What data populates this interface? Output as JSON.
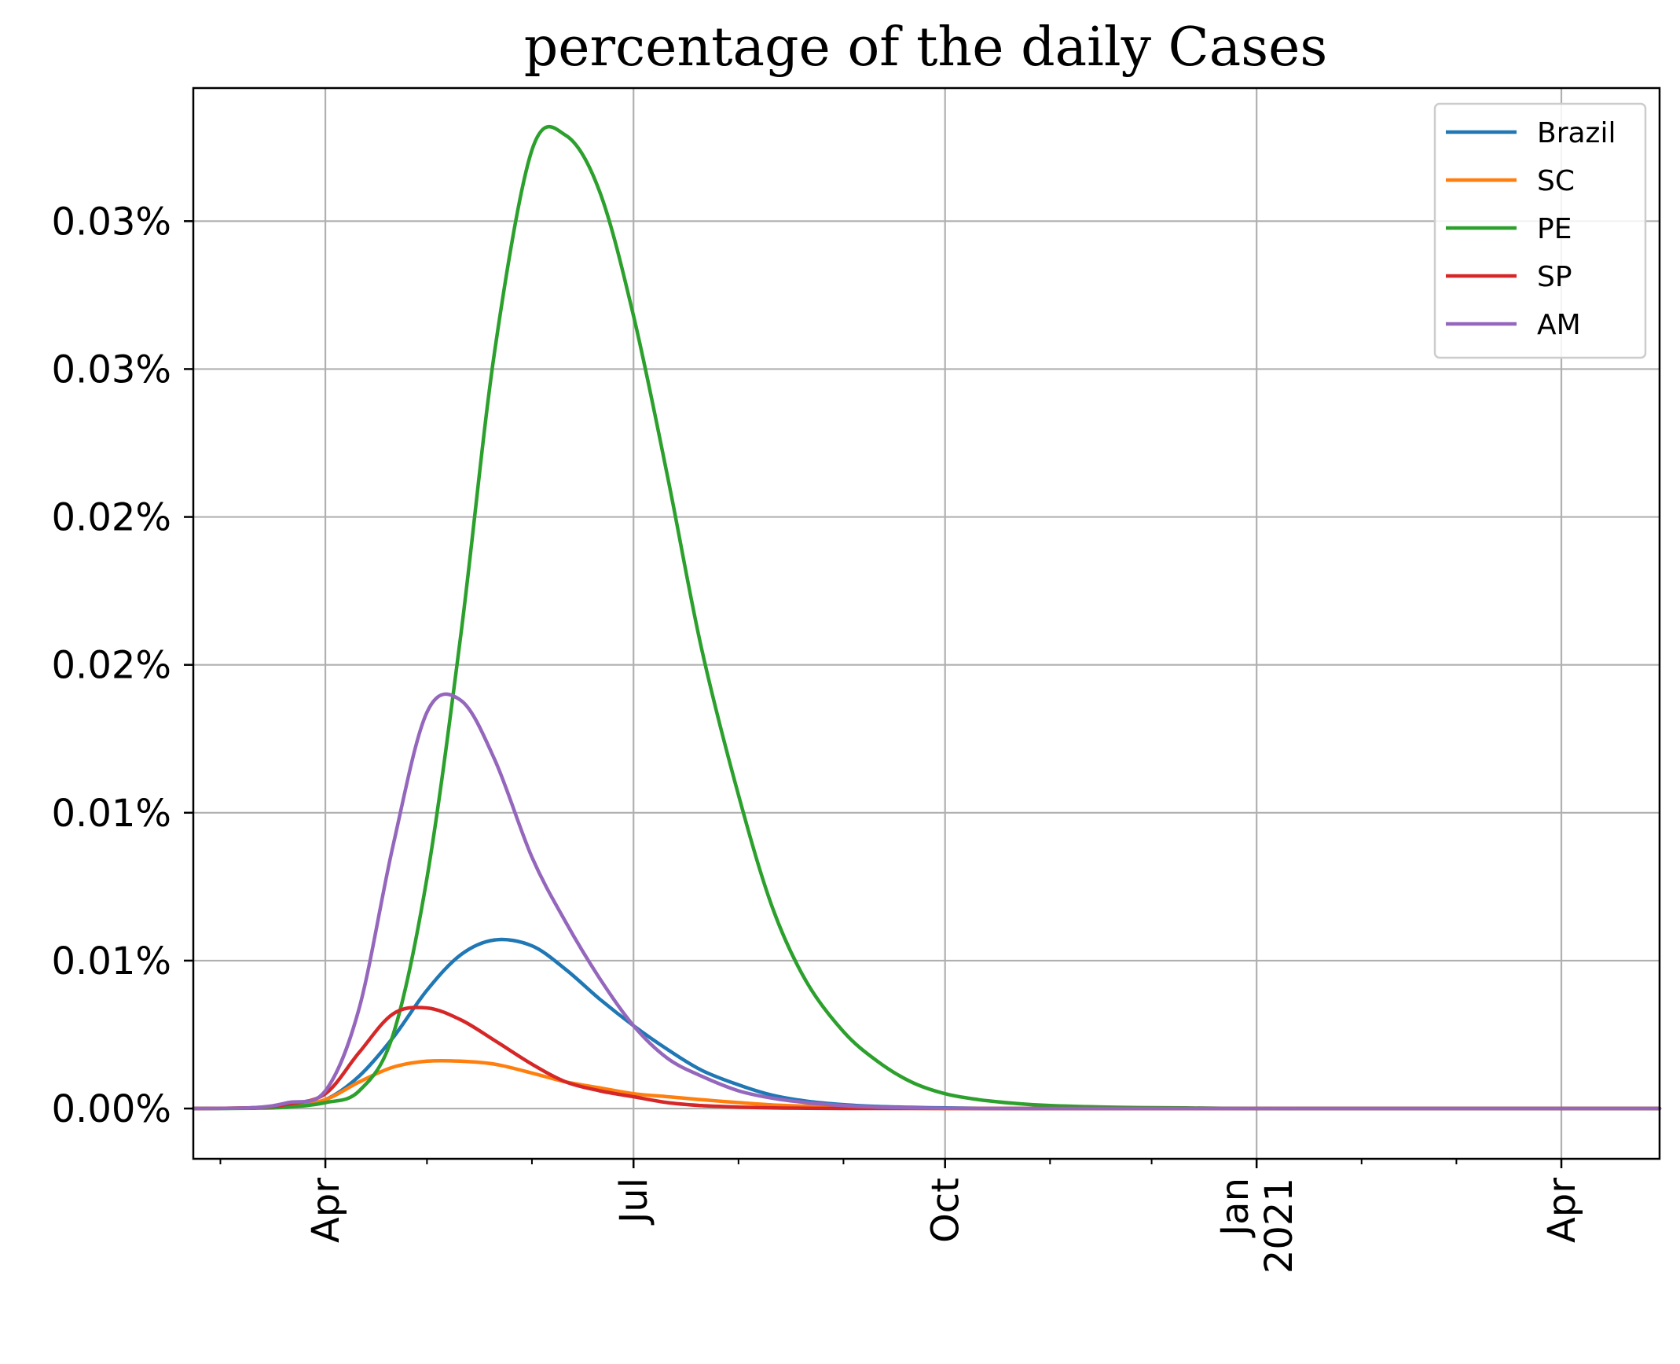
{
  "chart_data": {
    "type": "line",
    "title": "percentage of the daily Cases",
    "xlabel": "",
    "ylabel": "",
    "x_axis": {
      "type": "date",
      "range": [
        "2020-02-22",
        "2021-04-30"
      ],
      "major_ticks": [
        {
          "date": "2020-04-01",
          "label": "Apr"
        },
        {
          "date": "2020-07-01",
          "label": "Jul"
        },
        {
          "date": "2020-10-01",
          "label": "Oct"
        },
        {
          "date": "2021-01-01",
          "label": "Jan\n2021"
        },
        {
          "date": "2021-04-01",
          "label": "Apr"
        }
      ],
      "minor_ticks": "monthly"
    },
    "y_axis": {
      "unit": "percent",
      "range": [
        -0.0017,
        0.0345
      ],
      "ticks": [
        {
          "value": 0.0,
          "label": "0.00%"
        },
        {
          "value": 0.005,
          "label": "0.01%"
        },
        {
          "value": 0.01,
          "label": "0.01%"
        },
        {
          "value": 0.015,
          "label": "0.02%"
        },
        {
          "value": 0.02,
          "label": "0.02%"
        },
        {
          "value": 0.025,
          "label": "0.03%"
        },
        {
          "value": 0.03,
          "label": "0.03%"
        }
      ]
    },
    "grid": true,
    "legend_position": "top-right",
    "x": [
      "2020-02-22",
      "2020-03-11",
      "2020-03-21",
      "2020-04-01",
      "2020-04-11",
      "2020-04-21",
      "2020-05-01",
      "2020-05-11",
      "2020-05-21",
      "2020-06-01",
      "2020-06-11",
      "2020-06-21",
      "2020-07-01",
      "2020-07-11",
      "2020-07-21",
      "2020-08-01",
      "2020-08-11",
      "2020-08-21",
      "2020-09-01",
      "2020-09-11",
      "2020-09-21",
      "2020-10-01",
      "2020-10-11",
      "2020-10-21",
      "2020-11-01",
      "2020-11-21",
      "2020-12-11",
      "2021-01-01",
      "2021-01-21",
      "2021-02-11",
      "2021-03-01",
      "2021-03-21",
      "2021-04-11",
      "2021-04-30"
    ],
    "series": [
      {
        "name": "Brazil",
        "color": "#1f77b4",
        "values": [
          0,
          2e-05,
          8e-05,
          0.0003,
          0.0011,
          0.0024,
          0.004,
          0.0052,
          0.0057,
          0.0055,
          0.0047,
          0.0037,
          0.0028,
          0.002,
          0.0013,
          0.0008,
          0.00045,
          0.00025,
          0.00013,
          7e-05,
          4e-05,
          2e-05,
          1e-05,
          0,
          0,
          0,
          0,
          0,
          0,
          0,
          0,
          0,
          0,
          0
        ]
      },
      {
        "name": "SC",
        "color": "#ff7f0e",
        "values": [
          0,
          2e-05,
          8e-05,
          0.0003,
          0.0009,
          0.0014,
          0.0016,
          0.0016,
          0.0015,
          0.0012,
          0.0009,
          0.0007,
          0.0005,
          0.0004,
          0.0003,
          0.0002,
          0.00012,
          8e-05,
          4e-05,
          2e-05,
          1e-05,
          0,
          0,
          0,
          0,
          0,
          0,
          0,
          0,
          0,
          0,
          0,
          0,
          0
        ]
      },
      {
        "name": "PE",
        "color": "#2ca02c",
        "values": [
          0,
          1e-05,
          5e-05,
          0.0002,
          0.0006,
          0.0025,
          0.0078,
          0.016,
          0.0256,
          0.0324,
          0.0329,
          0.031,
          0.0268,
          0.0214,
          0.0156,
          0.0106,
          0.0068,
          0.0043,
          0.0026,
          0.0016,
          0.0009,
          0.0005,
          0.0003,
          0.00018,
          0.0001,
          4e-05,
          2e-05,
          0,
          0,
          0,
          0,
          0,
          0,
          0
        ]
      },
      {
        "name": "SP",
        "color": "#d62728",
        "values": [
          0,
          3e-05,
          0.00015,
          0.0005,
          0.0019,
          0.0032,
          0.0034,
          0.003,
          0.0023,
          0.0015,
          0.0009,
          0.0006,
          0.0004,
          0.0002,
          0.0001,
          5e-05,
          2e-05,
          1e-05,
          0,
          0,
          0,
          0,
          0,
          0,
          0,
          0,
          0,
          0,
          0,
          0,
          0,
          0,
          0,
          0
        ]
      },
      {
        "name": "AM",
        "color": "#9467bd",
        "values": [
          0,
          3e-05,
          0.0002,
          0.0006,
          0.0034,
          0.0089,
          0.0134,
          0.0138,
          0.0118,
          0.0085,
          0.0063,
          0.0044,
          0.0028,
          0.0017,
          0.0011,
          0.0006,
          0.00035,
          0.0002,
          0.0001,
          5e-05,
          2e-05,
          1e-05,
          0,
          0,
          0,
          0,
          0,
          0,
          0,
          0,
          0,
          0,
          0,
          0
        ]
      }
    ]
  }
}
